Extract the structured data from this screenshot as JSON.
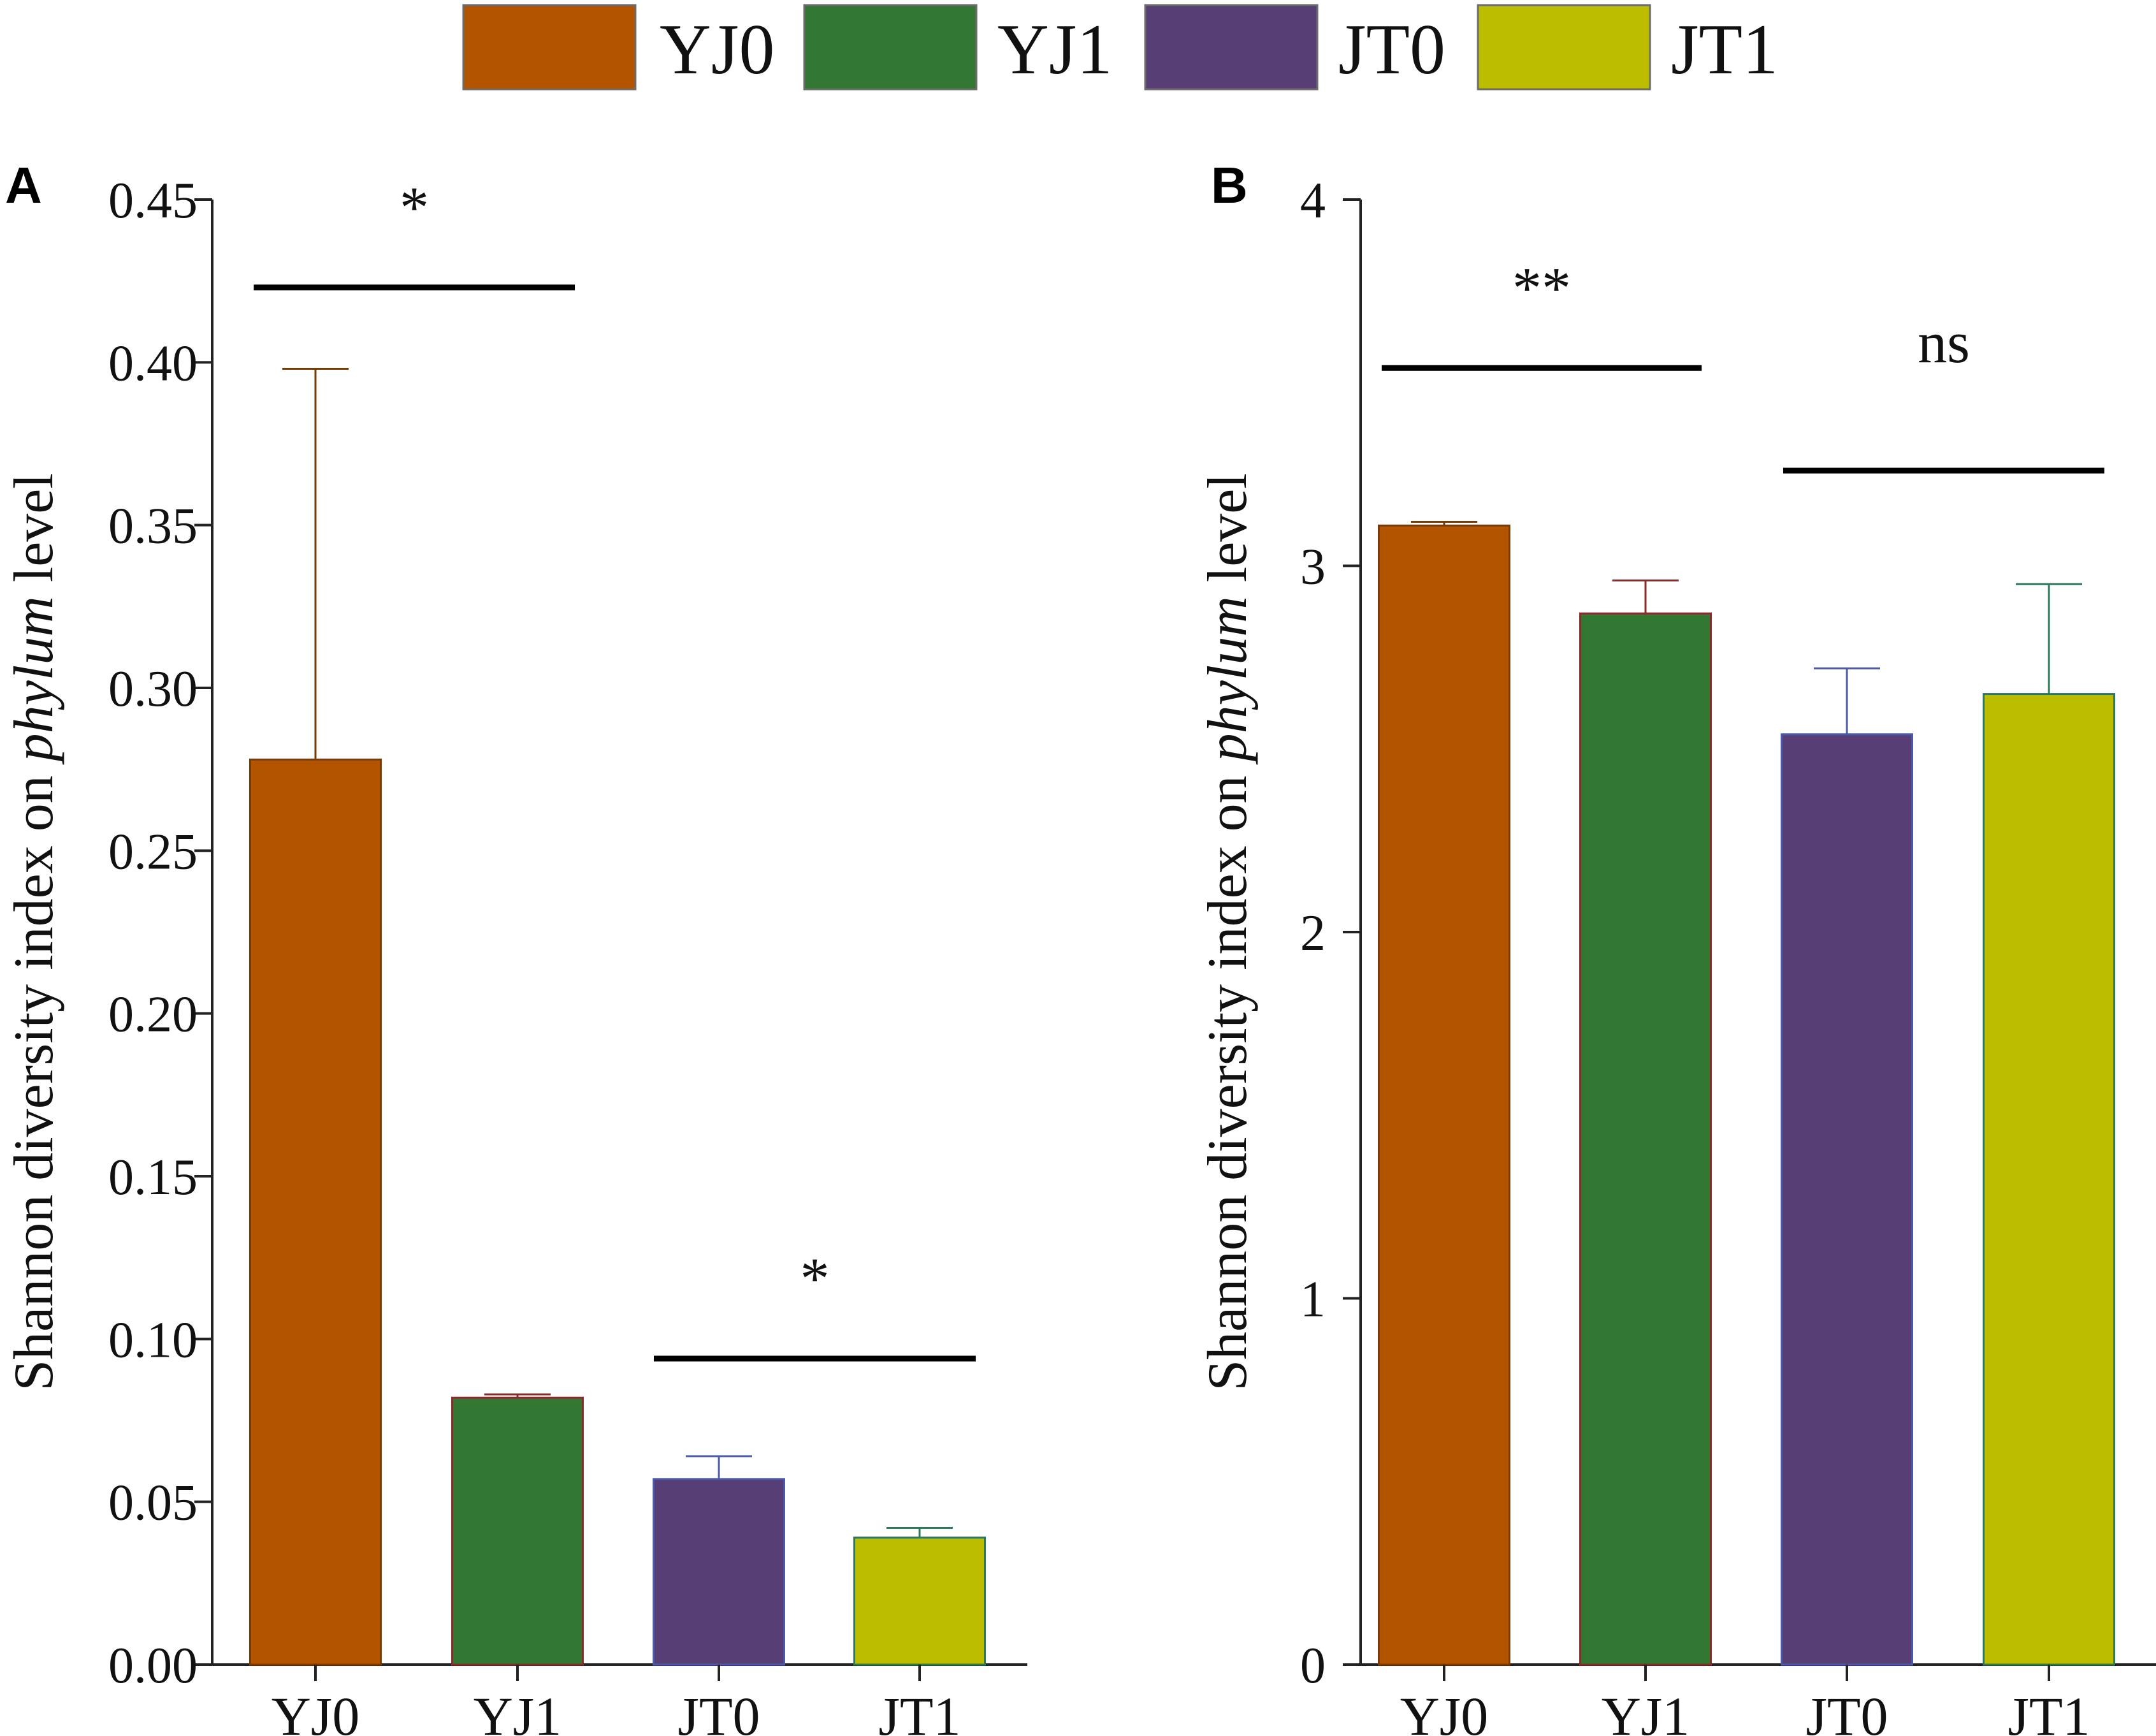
{
  "legend": [
    {
      "label": "YJ0",
      "color": "#B35400"
    },
    {
      "label": "YJ1",
      "color": "#327833"
    },
    {
      "label": "JT0",
      "color": "#573F75"
    },
    {
      "label": "JT1",
      "color": "#BDBD00"
    }
  ],
  "chart_data": [
    {
      "type": "bar",
      "panel": "A",
      "categories": [
        "YJ0",
        "YJ1",
        "JT0",
        "JT1"
      ],
      "values": [
        0.278,
        0.082,
        0.057,
        0.039
      ],
      "error_upper": [
        0.398,
        0.083,
        0.064,
        0.042
      ],
      "colors": [
        "#B35400",
        "#327833",
        "#573F75",
        "#BDBD00"
      ],
      "ylim": [
        0,
        0.45
      ],
      "yticks": [
        0.0,
        0.05,
        0.1,
        0.15,
        0.2,
        0.25,
        0.3,
        0.35,
        0.4,
        0.45
      ],
      "ytick_labels": [
        "0.00",
        "0.05",
        "0.10",
        "0.15",
        "0.20",
        "0.25",
        "0.30",
        "0.35",
        "0.40",
        "0.45"
      ],
      "ylabel_parts": [
        "Shannon diversity index on ",
        "phylum",
        " level"
      ],
      "significance": [
        {
          "from": "YJ0",
          "to": "YJ1",
          "label": "*",
          "y": 0.423
        },
        {
          "from": "JT0",
          "to": "JT1",
          "label": "*",
          "y": 0.094
        }
      ]
    },
    {
      "type": "bar",
      "panel": "B",
      "categories": [
        "YJ0",
        "YJ1",
        "JT0",
        "JT1"
      ],
      "values": [
        3.11,
        2.87,
        2.54,
        2.65
      ],
      "error_upper": [
        3.12,
        2.96,
        2.72,
        2.95
      ],
      "colors": [
        "#B35400",
        "#327833",
        "#573F75",
        "#BDBD00"
      ],
      "ylim": [
        0,
        4
      ],
      "yticks": [
        0,
        1,
        2,
        3,
        4
      ],
      "ytick_labels": [
        "0",
        "1",
        "2",
        "3",
        "4"
      ],
      "ylabel_parts": [
        "Shannon diversity index on ",
        "phylum",
        " level"
      ],
      "significance": [
        {
          "from": "YJ0",
          "to": "YJ1",
          "label": "**",
          "y": 3.54
        },
        {
          "from": "JT0",
          "to": "JT1",
          "label": "ns",
          "y": 3.26
        }
      ]
    }
  ]
}
